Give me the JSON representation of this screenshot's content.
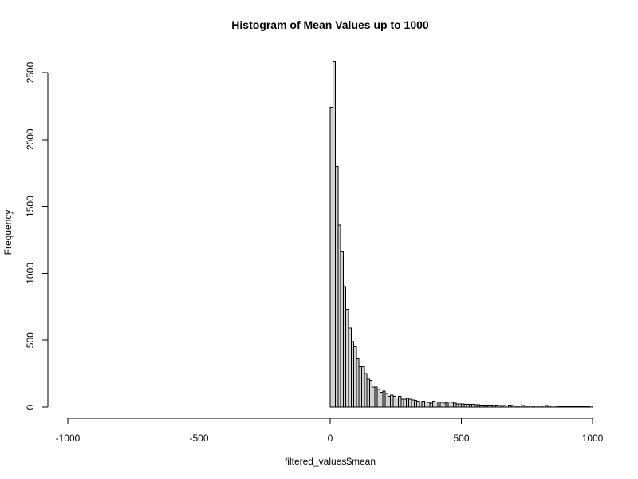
{
  "chart_data": {
    "type": "bar",
    "title": "Histogram of Mean Values up to 1000",
    "xlabel": "filtered_values$mean",
    "ylabel": "Frequency",
    "xlim": [
      -1000,
      1000
    ],
    "ylim": [
      0,
      2600
    ],
    "x_ticks": [
      -1000,
      -500,
      0,
      500,
      1000
    ],
    "y_ticks": [
      0,
      500,
      1000,
      1500,
      2000,
      2500
    ],
    "bin_width": 10,
    "bin_start": 0,
    "counts": [
      2240,
      2580,
      1800,
      1360,
      1160,
      900,
      730,
      590,
      490,
      450,
      360,
      300,
      300,
      250,
      210,
      200,
      150,
      150,
      130,
      110,
      120,
      100,
      80,
      90,
      80,
      70,
      80,
      60,
      60,
      65,
      60,
      55,
      50,
      45,
      40,
      45,
      40,
      35,
      30,
      45,
      40,
      38,
      35,
      30,
      35,
      40,
      35,
      30,
      25,
      25,
      25,
      22,
      20,
      20,
      20,
      18,
      18,
      15,
      15,
      15,
      15,
      14,
      12,
      15,
      12,
      12,
      12,
      10,
      15,
      12,
      10,
      10,
      10,
      12,
      10,
      8,
      10,
      10,
      8,
      8,
      8,
      10,
      12,
      8,
      8,
      8,
      8,
      6,
      6,
      6,
      5,
      6,
      6,
      5,
      5,
      5,
      5,
      5,
      3,
      10
    ],
    "bar_color": "#d3d3d3",
    "grid": false,
    "legend": "none"
  }
}
